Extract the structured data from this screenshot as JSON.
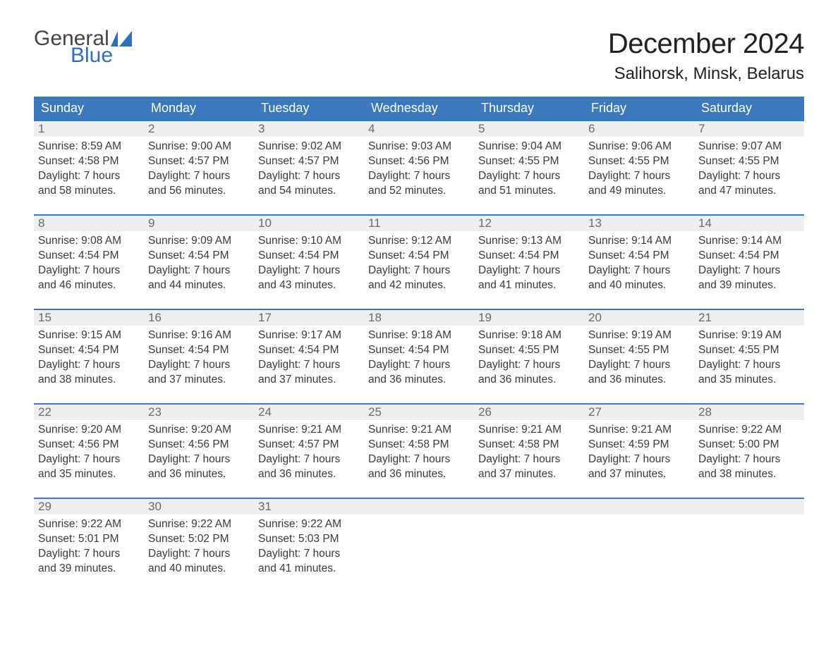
{
  "brand": {
    "word1": "General",
    "word2": "Blue",
    "flag_color": "#2e71b8"
  },
  "title": "December 2024",
  "location": "Salihorsk, Minsk, Belarus",
  "colors": {
    "header_bg": "#3b78bc",
    "daynum_bg": "#eeeeee",
    "daynum_text": "#6a6a6a",
    "body_text": "#3a3a3a"
  },
  "day_names": [
    "Sunday",
    "Monday",
    "Tuesday",
    "Wednesday",
    "Thursday",
    "Friday",
    "Saturday"
  ],
  "weeks": [
    [
      {
        "n": "1",
        "sunrise": "Sunrise: 8:59 AM",
        "sunset": "Sunset: 4:58 PM",
        "d1": "Daylight: 7 hours",
        "d2": "and 58 minutes."
      },
      {
        "n": "2",
        "sunrise": "Sunrise: 9:00 AM",
        "sunset": "Sunset: 4:57 PM",
        "d1": "Daylight: 7 hours",
        "d2": "and 56 minutes."
      },
      {
        "n": "3",
        "sunrise": "Sunrise: 9:02 AM",
        "sunset": "Sunset: 4:57 PM",
        "d1": "Daylight: 7 hours",
        "d2": "and 54 minutes."
      },
      {
        "n": "4",
        "sunrise": "Sunrise: 9:03 AM",
        "sunset": "Sunset: 4:56 PM",
        "d1": "Daylight: 7 hours",
        "d2": "and 52 minutes."
      },
      {
        "n": "5",
        "sunrise": "Sunrise: 9:04 AM",
        "sunset": "Sunset: 4:55 PM",
        "d1": "Daylight: 7 hours",
        "d2": "and 51 minutes."
      },
      {
        "n": "6",
        "sunrise": "Sunrise: 9:06 AM",
        "sunset": "Sunset: 4:55 PM",
        "d1": "Daylight: 7 hours",
        "d2": "and 49 minutes."
      },
      {
        "n": "7",
        "sunrise": "Sunrise: 9:07 AM",
        "sunset": "Sunset: 4:55 PM",
        "d1": "Daylight: 7 hours",
        "d2": "and 47 minutes."
      }
    ],
    [
      {
        "n": "8",
        "sunrise": "Sunrise: 9:08 AM",
        "sunset": "Sunset: 4:54 PM",
        "d1": "Daylight: 7 hours",
        "d2": "and 46 minutes."
      },
      {
        "n": "9",
        "sunrise": "Sunrise: 9:09 AM",
        "sunset": "Sunset: 4:54 PM",
        "d1": "Daylight: 7 hours",
        "d2": "and 44 minutes."
      },
      {
        "n": "10",
        "sunrise": "Sunrise: 9:10 AM",
        "sunset": "Sunset: 4:54 PM",
        "d1": "Daylight: 7 hours",
        "d2": "and 43 minutes."
      },
      {
        "n": "11",
        "sunrise": "Sunrise: 9:12 AM",
        "sunset": "Sunset: 4:54 PM",
        "d1": "Daylight: 7 hours",
        "d2": "and 42 minutes."
      },
      {
        "n": "12",
        "sunrise": "Sunrise: 9:13 AM",
        "sunset": "Sunset: 4:54 PM",
        "d1": "Daylight: 7 hours",
        "d2": "and 41 minutes."
      },
      {
        "n": "13",
        "sunrise": "Sunrise: 9:14 AM",
        "sunset": "Sunset: 4:54 PM",
        "d1": "Daylight: 7 hours",
        "d2": "and 40 minutes."
      },
      {
        "n": "14",
        "sunrise": "Sunrise: 9:14 AM",
        "sunset": "Sunset: 4:54 PM",
        "d1": "Daylight: 7 hours",
        "d2": "and 39 minutes."
      }
    ],
    [
      {
        "n": "15",
        "sunrise": "Sunrise: 9:15 AM",
        "sunset": "Sunset: 4:54 PM",
        "d1": "Daylight: 7 hours",
        "d2": "and 38 minutes."
      },
      {
        "n": "16",
        "sunrise": "Sunrise: 9:16 AM",
        "sunset": "Sunset: 4:54 PM",
        "d1": "Daylight: 7 hours",
        "d2": "and 37 minutes."
      },
      {
        "n": "17",
        "sunrise": "Sunrise: 9:17 AM",
        "sunset": "Sunset: 4:54 PM",
        "d1": "Daylight: 7 hours",
        "d2": "and 37 minutes."
      },
      {
        "n": "18",
        "sunrise": "Sunrise: 9:18 AM",
        "sunset": "Sunset: 4:54 PM",
        "d1": "Daylight: 7 hours",
        "d2": "and 36 minutes."
      },
      {
        "n": "19",
        "sunrise": "Sunrise: 9:18 AM",
        "sunset": "Sunset: 4:55 PM",
        "d1": "Daylight: 7 hours",
        "d2": "and 36 minutes."
      },
      {
        "n": "20",
        "sunrise": "Sunrise: 9:19 AM",
        "sunset": "Sunset: 4:55 PM",
        "d1": "Daylight: 7 hours",
        "d2": "and 36 minutes."
      },
      {
        "n": "21",
        "sunrise": "Sunrise: 9:19 AM",
        "sunset": "Sunset: 4:55 PM",
        "d1": "Daylight: 7 hours",
        "d2": "and 35 minutes."
      }
    ],
    [
      {
        "n": "22",
        "sunrise": "Sunrise: 9:20 AM",
        "sunset": "Sunset: 4:56 PM",
        "d1": "Daylight: 7 hours",
        "d2": "and 35 minutes."
      },
      {
        "n": "23",
        "sunrise": "Sunrise: 9:20 AM",
        "sunset": "Sunset: 4:56 PM",
        "d1": "Daylight: 7 hours",
        "d2": "and 36 minutes."
      },
      {
        "n": "24",
        "sunrise": "Sunrise: 9:21 AM",
        "sunset": "Sunset: 4:57 PM",
        "d1": "Daylight: 7 hours",
        "d2": "and 36 minutes."
      },
      {
        "n": "25",
        "sunrise": "Sunrise: 9:21 AM",
        "sunset": "Sunset: 4:58 PM",
        "d1": "Daylight: 7 hours",
        "d2": "and 36 minutes."
      },
      {
        "n": "26",
        "sunrise": "Sunrise: 9:21 AM",
        "sunset": "Sunset: 4:58 PM",
        "d1": "Daylight: 7 hours",
        "d2": "and 37 minutes."
      },
      {
        "n": "27",
        "sunrise": "Sunrise: 9:21 AM",
        "sunset": "Sunset: 4:59 PM",
        "d1": "Daylight: 7 hours",
        "d2": "and 37 minutes."
      },
      {
        "n": "28",
        "sunrise": "Sunrise: 9:22 AM",
        "sunset": "Sunset: 5:00 PM",
        "d1": "Daylight: 7 hours",
        "d2": "and 38 minutes."
      }
    ],
    [
      {
        "n": "29",
        "sunrise": "Sunrise: 9:22 AM",
        "sunset": "Sunset: 5:01 PM",
        "d1": "Daylight: 7 hours",
        "d2": "and 39 minutes."
      },
      {
        "n": "30",
        "sunrise": "Sunrise: 9:22 AM",
        "sunset": "Sunset: 5:02 PM",
        "d1": "Daylight: 7 hours",
        "d2": "and 40 minutes."
      },
      {
        "n": "31",
        "sunrise": "Sunrise: 9:22 AM",
        "sunset": "Sunset: 5:03 PM",
        "d1": "Daylight: 7 hours",
        "d2": "and 41 minutes."
      },
      {
        "empty": true
      },
      {
        "empty": true
      },
      {
        "empty": true
      },
      {
        "empty": true
      }
    ]
  ]
}
